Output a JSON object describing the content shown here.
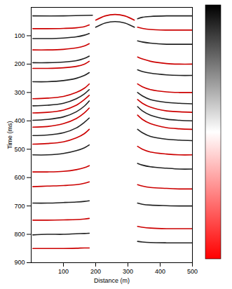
{
  "chart_data": {
    "type": "line",
    "xlabel": "Distance (m)",
    "ylabel": "Time (ms)",
    "xlim": [
      0,
      500
    ],
    "xticks": [
      100,
      200,
      300,
      400,
      500
    ],
    "ylim": [
      0,
      900
    ],
    "yticks": [
      100,
      200,
      300,
      400,
      500,
      600,
      700,
      800,
      900
    ],
    "grid": false,
    "colorbar": {
      "colors": [
        "#000000",
        "#ffffff",
        "#ff0000"
      ]
    },
    "series": [
      {
        "color": "#222222",
        "x": [
          5,
          100,
          190
        ],
        "values": [
          30,
          30,
          28
        ]
      },
      {
        "color": "#222222",
        "x": [
          330,
          345,
          370,
          420,
          460,
          500
        ],
        "values": [
          40,
          35,
          32,
          30,
          30,
          30
        ]
      },
      {
        "color": "#cc0000",
        "x": [
          200,
          230,
          260,
          290,
          320
        ],
        "values": [
          45,
          30,
          25,
          30,
          45
        ]
      },
      {
        "color": "#222222",
        "x": [
          200,
          230,
          260,
          290,
          320
        ],
        "values": [
          70,
          55,
          50,
          55,
          70
        ]
      },
      {
        "color": "#cc0000",
        "x": [
          5,
          50,
          100,
          140,
          165,
          180
        ],
        "values": [
          75,
          75,
          74,
          72,
          68,
          62
        ]
      },
      {
        "color": "#222222",
        "x": [
          5,
          50,
          100,
          140,
          165,
          180
        ],
        "values": [
          110,
          110,
          108,
          104,
          98,
          92
        ]
      },
      {
        "color": "#cc0000",
        "x": [
          5,
          50,
          100,
          140,
          165,
          180
        ],
        "values": [
          150,
          150,
          148,
          143,
          136,
          128
        ]
      },
      {
        "color": "#222222",
        "x": [
          5,
          50,
          100,
          140,
          165,
          180
        ],
        "values": [
          195,
          195,
          193,
          188,
          180,
          172
        ]
      },
      {
        "color": "#cc0000",
        "x": [
          5,
          50,
          100,
          140,
          165,
          180
        ],
        "values": [
          215,
          215,
          213,
          208,
          200,
          190
        ]
      },
      {
        "color": "#222222",
        "x": [
          5,
          50,
          100,
          140,
          165,
          180
        ],
        "values": [
          262,
          262,
          258,
          250,
          240,
          230
        ]
      },
      {
        "color": "#cc0000",
        "x": [
          5,
          50,
          100,
          140,
          165,
          180
        ],
        "values": [
          322,
          320,
          314,
          300,
          285,
          270
        ]
      },
      {
        "color": "#222222",
        "x": [
          5,
          50,
          100,
          140,
          165,
          180
        ],
        "values": [
          347,
          345,
          338,
          322,
          305,
          290
        ]
      },
      {
        "color": "#cc0000",
        "x": [
          5,
          50,
          100,
          140,
          165,
          180
        ],
        "values": [
          372,
          370,
          362,
          345,
          325,
          310
        ]
      },
      {
        "color": "#222222",
        "x": [
          5,
          50,
          100,
          140,
          165,
          180
        ],
        "values": [
          398,
          395,
          386,
          368,
          348,
          330
        ]
      },
      {
        "color": "#cc0000",
        "x": [
          5,
          50,
          100,
          140,
          165,
          180
        ],
        "values": [
          422,
          420,
          410,
          392,
          372,
          355
        ]
      },
      {
        "color": "#222222",
        "x": [
          5,
          50,
          100,
          140,
          165,
          180
        ],
        "values": [
          452,
          450,
          442,
          425,
          405,
          390
        ]
      },
      {
        "color": "#cc0000",
        "x": [
          5,
          50,
          100,
          140,
          165,
          180
        ],
        "values": [
          482,
          480,
          474,
          460,
          445,
          430
        ]
      },
      {
        "color": "#222222",
        "x": [
          5,
          50,
          100,
          140,
          165,
          180
        ],
        "values": [
          520,
          520,
          515,
          505,
          495,
          485
        ]
      },
      {
        "color": "#cc0000",
        "x": [
          5,
          50,
          100,
          140,
          165,
          180
        ],
        "values": [
          580,
          580,
          578,
          572,
          565,
          558
        ]
      },
      {
        "color": "#cc0000",
        "x": [
          5,
          50,
          100,
          140,
          165,
          180
        ],
        "values": [
          632,
          630,
          628,
          625,
          620,
          615
        ]
      },
      {
        "color": "#222222",
        "x": [
          5,
          50,
          100,
          140,
          165,
          180
        ],
        "values": [
          690,
          690,
          688,
          686,
          684,
          682
        ]
      },
      {
        "color": "#cc0000",
        "x": [
          5,
          50,
          100,
          140,
          165,
          180
        ],
        "values": [
          750,
          750,
          749,
          748,
          746,
          744
        ]
      },
      {
        "color": "#222222",
        "x": [
          5,
          50,
          100,
          140,
          165,
          180
        ],
        "values": [
          802,
          800,
          800,
          798,
          797,
          796
        ]
      },
      {
        "color": "#cc0000",
        "x": [
          5,
          50,
          100,
          140,
          165,
          180
        ],
        "values": [
          850,
          850,
          850,
          849,
          848,
          848
        ]
      },
      {
        "color": "#cc0000",
        "x": [
          330,
          345,
          370,
          420,
          460,
          500
        ],
        "values": [
          70,
          74,
          78,
          80,
          80,
          80
        ]
      },
      {
        "color": "#222222",
        "x": [
          330,
          345,
          370,
          420,
          460,
          500
        ],
        "values": [
          118,
          122,
          126,
          130,
          130,
          130
        ]
      },
      {
        "color": "#cc0000",
        "x": [
          330,
          345,
          370,
          420,
          460,
          500
        ],
        "values": [
          175,
          182,
          190,
          198,
          200,
          200
        ]
      },
      {
        "color": "#222222",
        "x": [
          330,
          345,
          370,
          420,
          460,
          500
        ],
        "values": [
          220,
          226,
          232,
          238,
          240,
          240
        ]
      },
      {
        "color": "#cc0000",
        "x": [
          330,
          345,
          370,
          420,
          460,
          500
        ],
        "values": [
          270,
          280,
          290,
          298,
          300,
          300
        ]
      },
      {
        "color": "#222222",
        "x": [
          330,
          345,
          370,
          420,
          460,
          500
        ],
        "values": [
          300,
          312,
          325,
          335,
          338,
          340
        ]
      },
      {
        "color": "#cc0000",
        "x": [
          330,
          345,
          370,
          420,
          460,
          500
        ],
        "values": [
          325,
          338,
          352,
          365,
          368,
          370
        ]
      },
      {
        "color": "#222222",
        "x": [
          330,
          345,
          370,
          420,
          460,
          500
        ],
        "values": [
          350,
          365,
          380,
          394,
          398,
          400
        ]
      },
      {
        "color": "#cc0000",
        "x": [
          330,
          345,
          370,
          420,
          460,
          500
        ],
        "values": [
          380,
          395,
          410,
          424,
          428,
          430
        ]
      },
      {
        "color": "#222222",
        "x": [
          330,
          345,
          370,
          420,
          460,
          500
        ],
        "values": [
          430,
          442,
          455,
          465,
          468,
          470
        ]
      },
      {
        "color": "#cc0000",
        "x": [
          330,
          345,
          370,
          420,
          460,
          500
        ],
        "values": [
          490,
          500,
          510,
          517,
          520,
          520
        ]
      },
      {
        "color": "#222222",
        "x": [
          330,
          345,
          370,
          420,
          460,
          500
        ],
        "values": [
          550,
          556,
          562,
          567,
          570,
          570
        ]
      },
      {
        "color": "#cc0000",
        "x": [
          330,
          345,
          370,
          420,
          460,
          500
        ],
        "values": [
          625,
          630,
          635,
          638,
          640,
          640
        ]
      },
      {
        "color": "#222222",
        "x": [
          330,
          345,
          370,
          420,
          460,
          500
        ],
        "values": [
          690,
          694,
          697,
          699,
          700,
          700
        ]
      },
      {
        "color": "#cc0000",
        "x": [
          330,
          345,
          370,
          420,
          460,
          500
        ],
        "values": [
          772,
          775,
          778,
          780,
          780,
          780
        ]
      },
      {
        "color": "#222222",
        "x": [
          330,
          345,
          370,
          420,
          460,
          500
        ],
        "values": [
          825,
          827,
          829,
          830,
          830,
          830
        ]
      }
    ]
  }
}
